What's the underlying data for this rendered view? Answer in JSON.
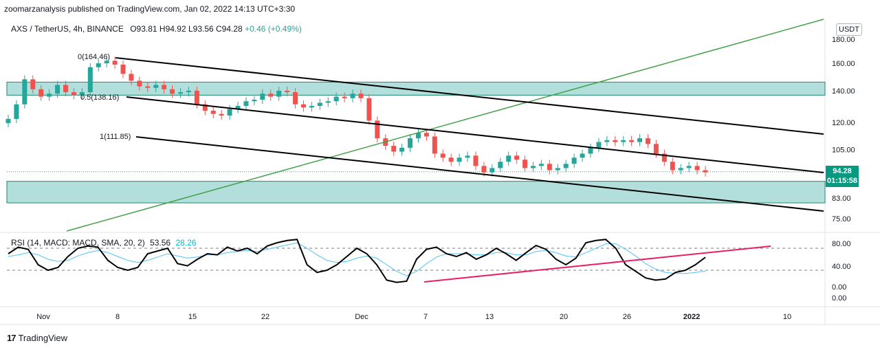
{
  "header": {
    "publisher_line": "zoomarzanalysis published on TradingView.com, Jan 02, 2022 14:13 UTC+3:30"
  },
  "legend": {
    "symbol": "AXS / TetherUS, 4h, BINANCE",
    "open": "O93.81",
    "high": "H94.92",
    "low": "L93.56",
    "close": "C94.28",
    "change": "+0.46 (+0.49%)"
  },
  "currency": "USDT",
  "price_tag": {
    "price": "94.28",
    "countdown": "01:15:58"
  },
  "rsi_legend": {
    "label": "RSI (14, MACD: MACD, SMA, 20, 2)",
    "value1": "53.56",
    "value2": "28.26"
  },
  "footer": {
    "brand": "TradingView",
    "logo": "17"
  },
  "colors": {
    "up_candle": "#26a69a",
    "down_candle": "#ef5350",
    "zone_fill": "#b2dfdb",
    "zone_border": "#1e8a6e",
    "trend_green": "#43a047",
    "trend_black": "#000000",
    "rsi_line": "#000000",
    "rsi_signal": "#4fc3f7",
    "rsi_trend": "#e91e63",
    "price_tag_bg": "#089981"
  },
  "chart_data": [
    {
      "type": "candlestick",
      "title": "AXS / TetherUS, 4h, BINANCE",
      "y_scale": "log",
      "ylim": [
        72,
        190
      ],
      "y_ticks": [
        "180.00",
        "160.00",
        "140.00",
        "120.00",
        "105.00",
        "94.28",
        "83.00",
        "75.00"
      ],
      "x_ticks": [
        "Nov",
        "8",
        "15",
        "22",
        "Dec",
        "7",
        "13",
        "20",
        "26",
        "2022",
        "10"
      ],
      "last_price": 94.28,
      "approx_closes": [
        122,
        131,
        148,
        141,
        136,
        138,
        144,
        139,
        137,
        139,
        157,
        160,
        162,
        159,
        152,
        147,
        143,
        142,
        144,
        141,
        138,
        139,
        140,
        131,
        127,
        125,
        124,
        128,
        130,
        133,
        134,
        138,
        136,
        140,
        139,
        131,
        129,
        130,
        132,
        133,
        136,
        135,
        138,
        135,
        121,
        111,
        107,
        104,
        106,
        111,
        114,
        112,
        103,
        101,
        99,
        101,
        102,
        97,
        94,
        96,
        99,
        102,
        100,
        96,
        97,
        98,
        95,
        96,
        98,
        101,
        103,
        106,
        109,
        110,
        109,
        110,
        109,
        111,
        108,
        103,
        99,
        95,
        96,
        97,
        95,
        94
      ],
      "zones": [
        {
          "from": 137,
          "to": 146
        },
        {
          "from": 81,
          "to": 90
        }
      ],
      "fibonacci_levels": [
        {
          "label": "0(164.46)",
          "value": 164.46
        },
        {
          "label": "0.5(138.16)",
          "value": 138.16
        },
        {
          "label": "1(111.85)",
          "value": 111.85
        }
      ]
    },
    {
      "type": "line",
      "title": "RSI (14, MACD: MACD, SMA, 20, 2)",
      "ylim": [
        -5,
        95
      ],
      "y_ticks": [
        "80.00",
        "40.00",
        "0.00",
        "0.00"
      ],
      "dashed_levels": [
        70,
        30
      ],
      "series": [
        {
          "name": "RSI",
          "values": [
            60,
            72,
            68,
            40,
            30,
            35,
            55,
            70,
            74,
            72,
            48,
            35,
            30,
            35,
            60,
            65,
            70,
            42,
            38,
            50,
            60,
            58,
            72,
            65,
            70,
            60,
            74,
            80,
            84,
            86,
            40,
            26,
            30,
            40,
            55,
            70,
            60,
            40,
            12,
            8,
            10,
            50,
            68,
            72,
            60,
            55,
            62,
            50,
            58,
            70,
            60,
            48,
            62,
            75,
            68,
            50,
            40,
            52,
            80,
            84,
            86,
            70,
            40,
            28,
            16,
            12,
            14,
            26,
            30,
            40,
            53.56
          ]
        },
        {
          "name": "Signal",
          "values": [
            55,
            58,
            62,
            58,
            50,
            46,
            48,
            56,
            62,
            66,
            62,
            55,
            48,
            44,
            48,
            54,
            60,
            56,
            52,
            54,
            58,
            58,
            62,
            64,
            66,
            64,
            68,
            72,
            76,
            80,
            70,
            58,
            48,
            44,
            46,
            52,
            56,
            52,
            40,
            28,
            20,
            28,
            42,
            54,
            60,
            60,
            60,
            58,
            58,
            62,
            62,
            58,
            58,
            64,
            66,
            62,
            56,
            54,
            62,
            70,
            78,
            78,
            68,
            56,
            42,
            32,
            26,
            24,
            24,
            26,
            28.26
          ]
        }
      ],
      "trendline": {
        "from": [
          0.28,
          12
        ],
        "to": [
          1.0,
          72
        ]
      }
    }
  ]
}
